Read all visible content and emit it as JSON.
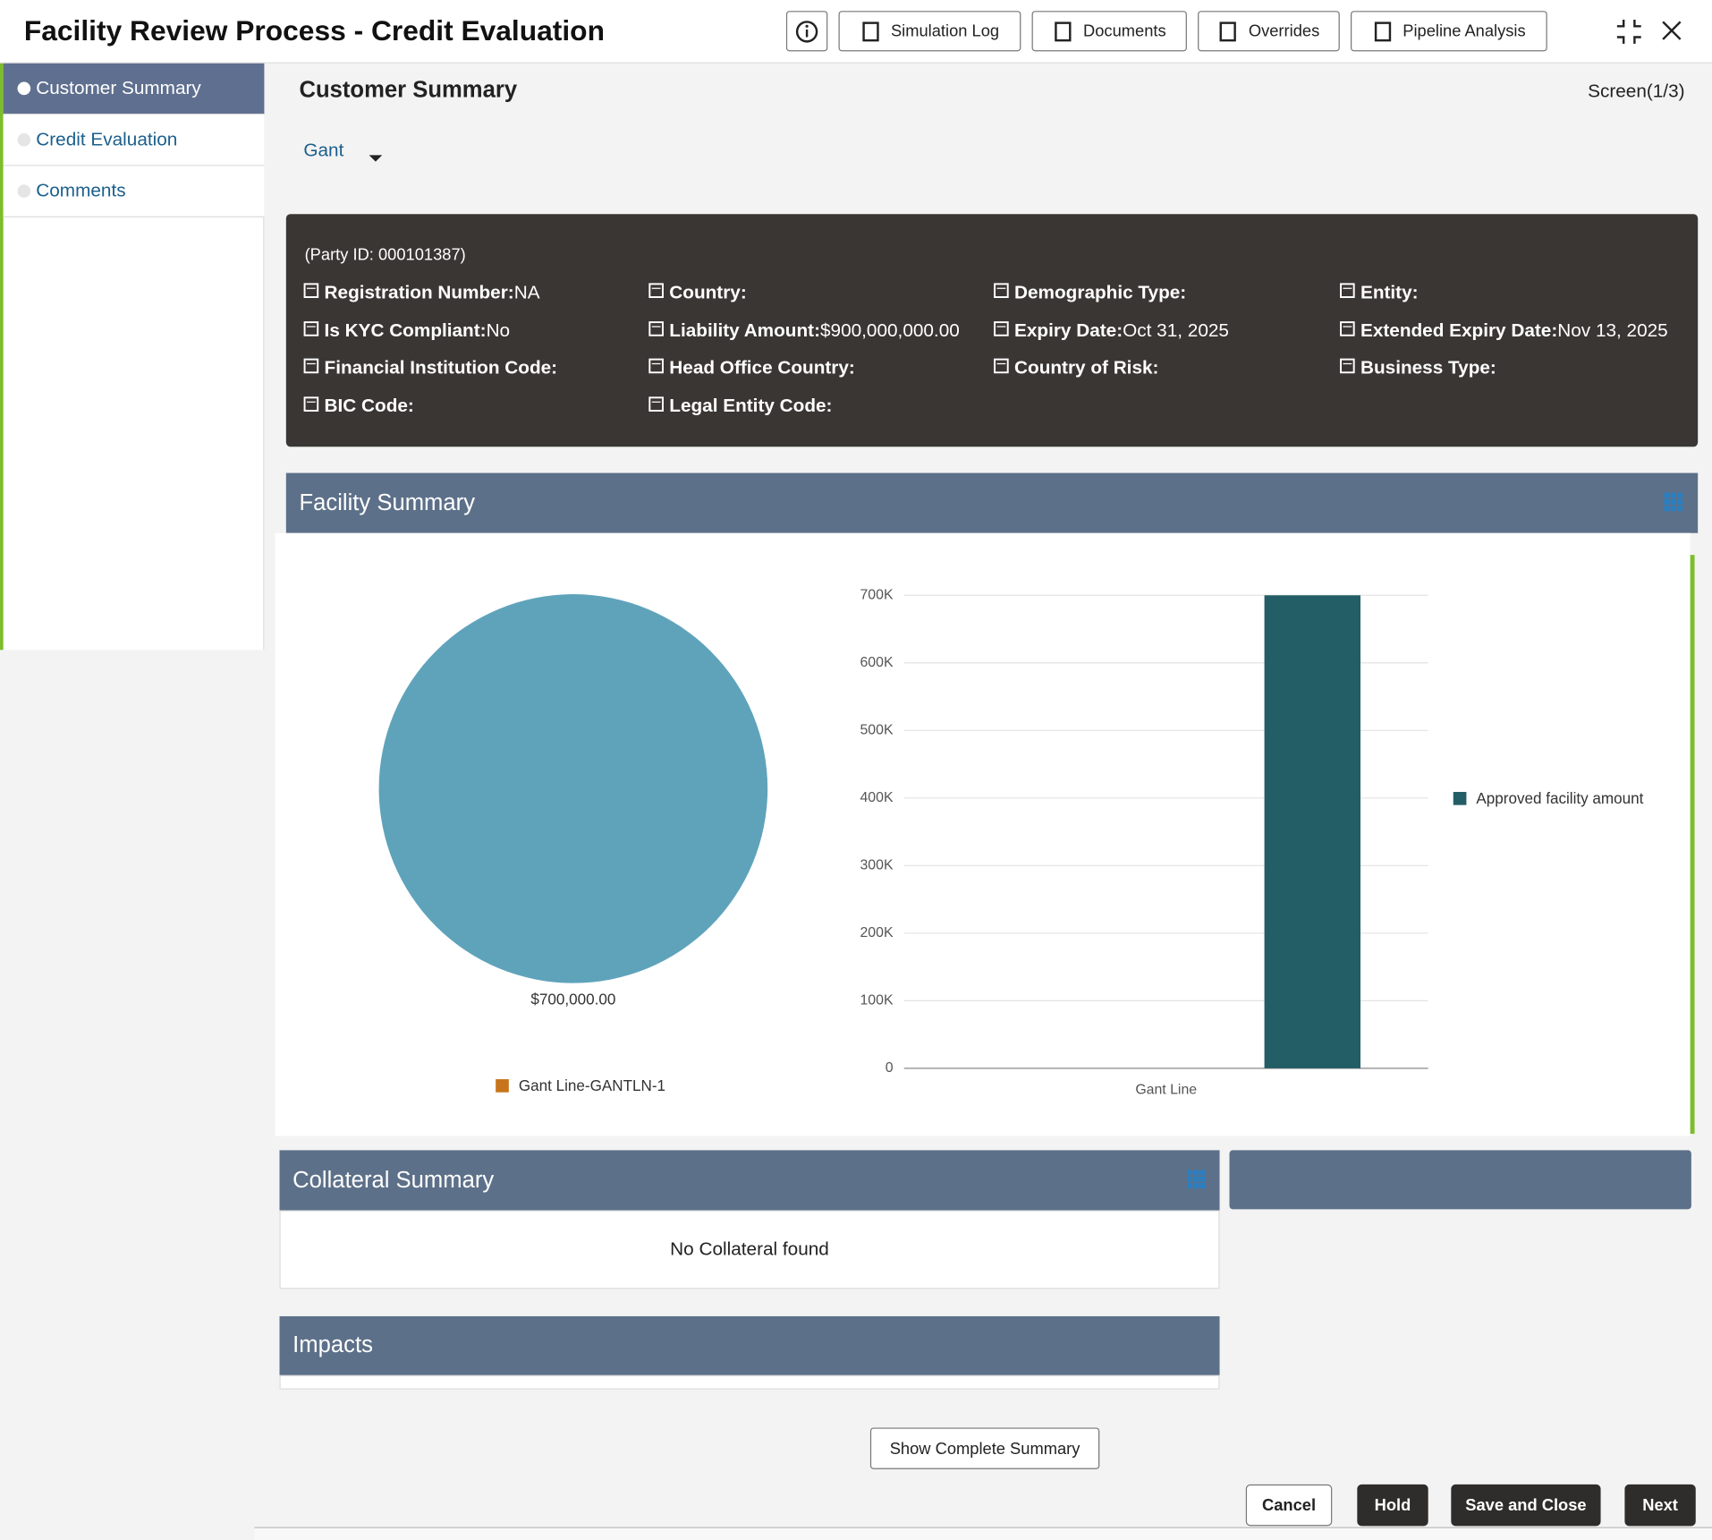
{
  "header": {
    "title": "Facility Review Process - Credit Evaluation",
    "buttons": [
      "Simulation Log",
      "Documents",
      "Overrides",
      "Pipeline Analysis"
    ]
  },
  "sidebar": {
    "items": [
      "Customer Summary",
      "Credit Evaluation",
      "Comments"
    ]
  },
  "content": {
    "title": "Customer Summary",
    "screen": "Screen(1/3)",
    "selector": "Gant"
  },
  "customer_info": {
    "party_id": "(Party ID: 000101387)",
    "fields": [
      {
        "label": "Registration Number:",
        "value": "NA"
      },
      {
        "label": "Country:"
      },
      {
        "label": "Demographic Type:"
      },
      {
        "label": "Entity:"
      },
      {
        "label": "Is KYC Compliant:",
        "value": "No"
      },
      {
        "label": "Liability Amount:",
        "value": "$900,000,000.00"
      },
      {
        "label": "Expiry Date:",
        "value": "Oct 31, 2025"
      },
      {
        "label": "Extended Expiry Date:",
        "value": "Nov 13, 2025"
      },
      {
        "label": "Financial Institution Code:"
      },
      {
        "label": "Head Office Country:"
      },
      {
        "label": "Country of Risk:"
      },
      {
        "label": "Business Type:"
      },
      {
        "label": "BIC Code:"
      },
      {
        "label": "Legal Entity Code:"
      }
    ]
  },
  "facility_summary": {
    "title": "Facility Summary",
    "charts": [
      {
        "type": "pie",
        "categories": [
          "Gant Line-GANTLN-1"
        ],
        "values": [
          700000
        ],
        "value_labels": [
          "$700,000.00"
        ],
        "color": "#5fa3bb",
        "legend_color": "#c8741c"
      },
      {
        "type": "bar",
        "categories": [
          "Gant Line"
        ],
        "series": [
          {
            "name": "Approved facility amount",
            "color": "#235e66",
            "values": [
              700000
            ]
          }
        ],
        "ylim": [
          0,
          700000
        ],
        "yticks": [
          0,
          {
            "value": 100000,
            "label": "100K"
          },
          {
            "value": 200000,
            "label": "200K"
          },
          {
            "value": 300000,
            "label": "300K"
          },
          {
            "value": 400000,
            "label": "400K"
          },
          {
            "value": 500000,
            "label": "500K"
          },
          {
            "value": 600000,
            "label": "600K"
          },
          {
            "value": 700000,
            "label": "700K"
          }
        ],
        "grid": true,
        "legend": "right"
      }
    ]
  },
  "collateral_summary": {
    "title": "Collateral Summary",
    "message": "No Collateral found"
  },
  "impacts": {
    "title": "Impacts"
  },
  "show_summary": "Show Complete Summary",
  "footer": {
    "buttons": [
      "Cancel",
      "Hold",
      "Save and Close",
      "Next"
    ]
  }
}
